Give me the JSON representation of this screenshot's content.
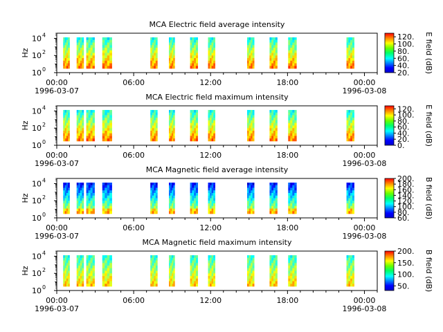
{
  "chart_data": [
    {
      "type": "heatmap",
      "title": "MCA  Electric field average intensity",
      "ylabel": "Hz",
      "yscale": "log",
      "ylim": [
        1,
        40000
      ],
      "ytick_values": [
        1,
        100,
        10000
      ],
      "ytick_labels": [
        "10",
        "10",
        "10"
      ],
      "ytick_exps": [
        "0",
        "2",
        "4"
      ],
      "xlim": [
        "1996-03-07 00:00",
        "1996-03-08 01:00"
      ],
      "x_ticks_hours": [
        0,
        6,
        12,
        18,
        24
      ],
      "x_tick_labels": [
        "00:00",
        "06:00",
        "12:00",
        "18:00",
        "00:00"
      ],
      "x_date_labels": [
        "1996-03-07",
        "1996-03-08"
      ],
      "colorbar_label": "E field (dB)",
      "colorbar_range": [
        20,
        130
      ],
      "colorbar_ticks": [
        "20.",
        "40.",
        "60.",
        "80.",
        "100.",
        "120."
      ],
      "colorbar_tick_values": [
        20,
        40,
        60,
        80,
        100,
        120
      ],
      "background_level": 0.55
    },
    {
      "type": "heatmap",
      "title": "MCA  Electric field maximum intensity",
      "ylabel": "Hz",
      "yscale": "log",
      "ylim": [
        1,
        40000
      ],
      "ytick_values": [
        1,
        100,
        10000
      ],
      "ytick_labels": [
        "10",
        "10",
        "10"
      ],
      "ytick_exps": [
        "0",
        "2",
        "4"
      ],
      "xlim": [
        "1996-03-07 00:00",
        "1996-03-08 01:00"
      ],
      "x_ticks_hours": [
        0,
        6,
        12,
        18,
        24
      ],
      "x_tick_labels": [
        "00:00",
        "06:00",
        "12:00",
        "18:00",
        "00:00"
      ],
      "x_date_labels": [
        "1996-03-07",
        "1996-03-08"
      ],
      "colorbar_label": "E field (dB)",
      "colorbar_range": [
        0,
        130
      ],
      "colorbar_ticks": [
        "0.",
        "20.",
        "40.",
        "60.",
        "80.",
        "100.",
        "120."
      ],
      "colorbar_tick_values": [
        0,
        20,
        40,
        60,
        80,
        100,
        120
      ],
      "background_level": 0.55
    },
    {
      "type": "heatmap",
      "title": "MCA  Magnetic field average intensity",
      "ylabel": "Hz",
      "yscale": "log",
      "ylim": [
        1,
        40000
      ],
      "ytick_values": [
        1,
        100,
        10000
      ],
      "ytick_labels": [
        "10",
        "10",
        "10"
      ],
      "ytick_exps": [
        "0",
        "2",
        "4"
      ],
      "xlim": [
        "1996-03-07 00:00",
        "1996-03-08 01:00"
      ],
      "x_ticks_hours": [
        0,
        6,
        12,
        18,
        24
      ],
      "x_tick_labels": [
        "00:00",
        "06:00",
        "12:00",
        "18:00",
        "00:00"
      ],
      "x_date_labels": [
        "1996-03-07",
        "1996-03-08"
      ],
      "colorbar_label": "B field (dB)",
      "colorbar_range": [
        60,
        200
      ],
      "colorbar_ticks": [
        "60.",
        "80.",
        "100.",
        "120.",
        "140.",
        "160.",
        "180.",
        "200."
      ],
      "colorbar_tick_values": [
        60,
        80,
        100,
        120,
        140,
        160,
        180,
        200
      ],
      "background_level": 0.3
    },
    {
      "type": "heatmap",
      "title": "MCA  Magnetic field maximum intensity",
      "ylabel": "Hz",
      "yscale": "log",
      "ylim": [
        1,
        40000
      ],
      "ytick_values": [
        1,
        100,
        10000
      ],
      "ytick_labels": [
        "10",
        "10",
        "10"
      ],
      "ytick_exps": [
        "0",
        "2",
        "4"
      ],
      "xlim": [
        "1996-03-07 00:00",
        "1996-03-08 01:00"
      ],
      "x_ticks_hours": [
        0,
        6,
        12,
        18,
        24
      ],
      "x_tick_labels": [
        "00:00",
        "06:00",
        "12:00",
        "18:00",
        "00:00"
      ],
      "x_date_labels": [
        "1996-03-07",
        "1996-03-08"
      ],
      "colorbar_label": "B field (dB)",
      "colorbar_range": [
        30,
        200
      ],
      "colorbar_ticks": [
        "50.",
        "100.",
        "150.",
        "200."
      ],
      "colorbar_tick_values": [
        50,
        100,
        150,
        200
      ],
      "background_level": 0.5
    }
  ],
  "data_intervals_hours": [
    [
      0.5,
      1.0
    ],
    [
      1.55,
      2.1
    ],
    [
      2.3,
      2.95
    ],
    [
      3.55,
      4.3
    ],
    [
      7.3,
      7.85
    ],
    [
      8.75,
      9.2
    ],
    [
      10.4,
      11.0
    ],
    [
      11.8,
      12.35
    ],
    [
      14.85,
      15.4
    ],
    [
      16.6,
      17.2
    ],
    [
      18.05,
      18.7
    ],
    [
      22.6,
      23.2
    ]
  ]
}
